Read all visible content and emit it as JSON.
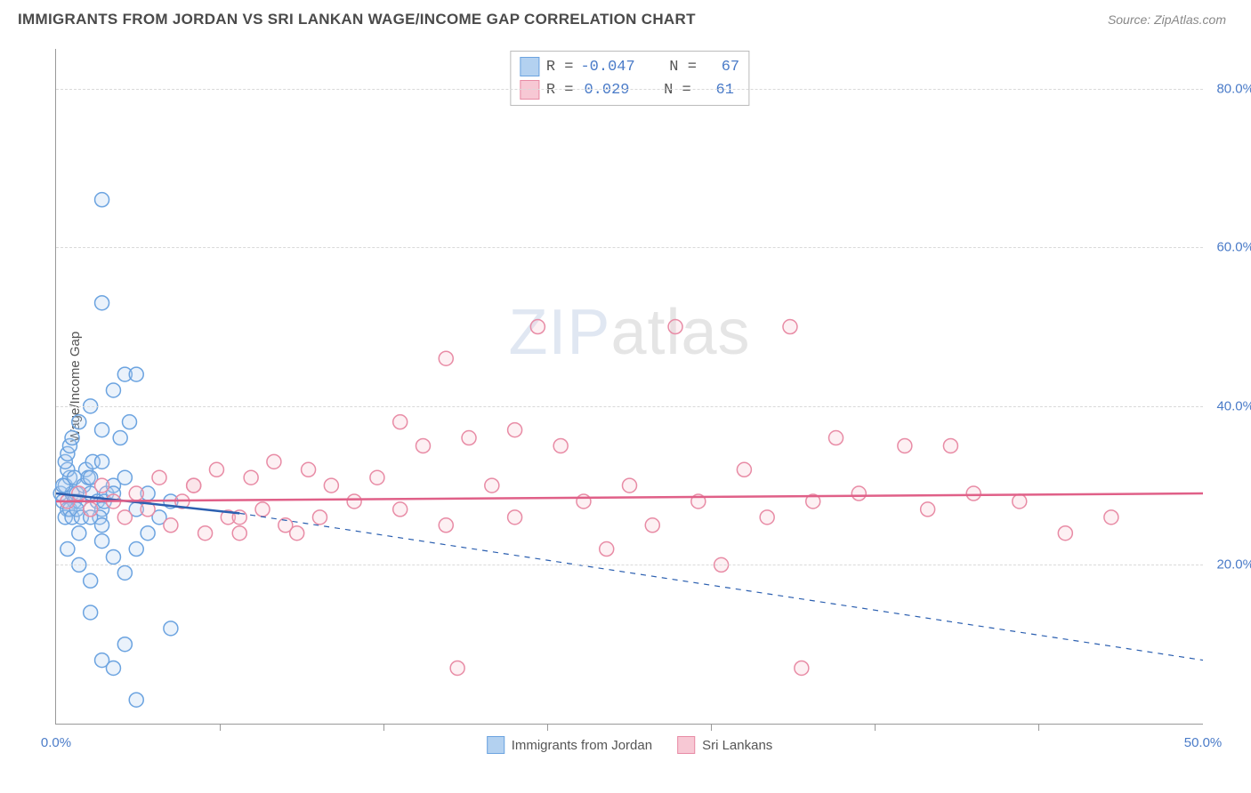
{
  "title": "IMMIGRANTS FROM JORDAN VS SRI LANKAN WAGE/INCOME GAP CORRELATION CHART",
  "source": "Source: ZipAtlas.com",
  "y_axis_label": "Wage/Income Gap",
  "watermark_bold": "ZIP",
  "watermark_thin": "atlas",
  "chart": {
    "type": "scatter",
    "background_color": "#ffffff",
    "grid_color": "#d9d9d9",
    "axis_color": "#999999",
    "xlim": [
      0,
      50
    ],
    "ylim": [
      0,
      85
    ],
    "x_ticks": [
      0,
      50
    ],
    "x_tick_labels": [
      "0.0%",
      "50.0%"
    ],
    "x_minor_ticks": [
      7.14,
      14.28,
      21.42,
      28.56,
      35.7,
      42.84
    ],
    "y_ticks": [
      20,
      40,
      60,
      80
    ],
    "y_tick_labels": [
      "20.0%",
      "40.0%",
      "60.0%",
      "80.0%"
    ],
    "marker_radius": 8,
    "marker_stroke_width": 1.5,
    "marker_fill_opacity": 0.28,
    "trend_line_width": 2.5,
    "series": [
      {
        "name": "Immigrants from Jordan",
        "color_fill": "#b3d1f0",
        "color_stroke": "#6ba3e0",
        "swatch_border": "#6ba3e0",
        "trend_color": "#2b5fb0",
        "trend_start_x": 0,
        "trend_start_y": 29,
        "trend_end_x": 8,
        "trend_end_y": 26.5,
        "extrap_start_x": 8,
        "extrap_start_y": 26.5,
        "extrap_end_x": 50,
        "extrap_end_y": 8,
        "R": "-0.047",
        "N": "67",
        "points": [
          [
            0.2,
            29
          ],
          [
            0.3,
            28
          ],
          [
            0.4,
            30
          ],
          [
            0.5,
            27
          ],
          [
            0.6,
            31
          ],
          [
            0.4,
            26
          ],
          [
            0.7,
            29
          ],
          [
            0.5,
            32
          ],
          [
            0.8,
            28
          ],
          [
            0.3,
            30
          ],
          [
            0.6,
            27
          ],
          [
            0.9,
            29
          ],
          [
            0.4,
            33
          ],
          [
            0.7,
            26
          ],
          [
            0.5,
            34
          ],
          [
            0.8,
            31
          ],
          [
            1.0,
            28
          ],
          [
            0.6,
            35
          ],
          [
            1.2,
            30
          ],
          [
            0.9,
            27
          ],
          [
            1.3,
            32
          ],
          [
            1.1,
            26
          ],
          [
            1.5,
            29
          ],
          [
            0.7,
            36
          ],
          [
            1.8,
            28
          ],
          [
            1.4,
            31
          ],
          [
            2.0,
            27
          ],
          [
            1.6,
            33
          ],
          [
            2.2,
            29
          ],
          [
            1.9,
            26
          ],
          [
            2.5,
            30
          ],
          [
            2.1,
            28
          ],
          [
            1.0,
            38
          ],
          [
            1.5,
            40
          ],
          [
            2.0,
            37
          ],
          [
            2.5,
            42
          ],
          [
            3.0,
            44
          ],
          [
            3.5,
            44
          ],
          [
            2.8,
            36
          ],
          [
            3.2,
            38
          ],
          [
            0.5,
            22
          ],
          [
            1.0,
            20
          ],
          [
            1.5,
            18
          ],
          [
            2.0,
            23
          ],
          [
            2.5,
            21
          ],
          [
            3.0,
            19
          ],
          [
            3.5,
            22
          ],
          [
            4.0,
            24
          ],
          [
            1.5,
            31
          ],
          [
            2.0,
            33
          ],
          [
            2.5,
            29
          ],
          [
            3.0,
            31
          ],
          [
            3.5,
            27
          ],
          [
            4.0,
            29
          ],
          [
            4.5,
            26
          ],
          [
            5.0,
            28
          ],
          [
            2.0,
            66
          ],
          [
            2.0,
            53
          ],
          [
            5.0,
            12
          ],
          [
            1.5,
            14
          ],
          [
            2.0,
            8
          ],
          [
            2.5,
            7
          ],
          [
            3.0,
            10
          ],
          [
            3.5,
            3
          ],
          [
            1.0,
            24
          ],
          [
            1.5,
            26
          ],
          [
            2.0,
            25
          ]
        ]
      },
      {
        "name": "Sri Lankans",
        "color_fill": "#f7c8d4",
        "color_stroke": "#e88ba5",
        "swatch_border": "#e88ba5",
        "trend_color": "#e06088",
        "trend_start_x": 0,
        "trend_start_y": 28,
        "trend_end_x": 50,
        "trend_end_y": 29,
        "extrap_start_x": 0,
        "extrap_start_y": 0,
        "extrap_end_x": 0,
        "extrap_end_y": 0,
        "R": "0.029",
        "N": "61",
        "points": [
          [
            0.5,
            28
          ],
          [
            1.0,
            29
          ],
          [
            1.5,
            27
          ],
          [
            2.0,
            30
          ],
          [
            2.5,
            28
          ],
          [
            3.0,
            26
          ],
          [
            3.5,
            29
          ],
          [
            4.0,
            27
          ],
          [
            4.5,
            31
          ],
          [
            5.0,
            25
          ],
          [
            5.5,
            28
          ],
          [
            6.0,
            30
          ],
          [
            6.5,
            24
          ],
          [
            7.0,
            32
          ],
          [
            7.5,
            26
          ],
          [
            8.0,
            24
          ],
          [
            8.5,
            31
          ],
          [
            9.0,
            27
          ],
          [
            9.5,
            33
          ],
          [
            10.0,
            25
          ],
          [
            10.5,
            24
          ],
          [
            11.0,
            32
          ],
          [
            11.5,
            26
          ],
          [
            12.0,
            30
          ],
          [
            13.0,
            28
          ],
          [
            14.0,
            31
          ],
          [
            15.0,
            27
          ],
          [
            16.0,
            35
          ],
          [
            17.0,
            25
          ],
          [
            18.0,
            36
          ],
          [
            19.0,
            30
          ],
          [
            20.0,
            26
          ],
          [
            21.0,
            50
          ],
          [
            22.0,
            35
          ],
          [
            23.0,
            28
          ],
          [
            24.0,
            22
          ],
          [
            25.0,
            30
          ],
          [
            26.0,
            25
          ],
          [
            27.0,
            50
          ],
          [
            28.0,
            28
          ],
          [
            29.0,
            20
          ],
          [
            30.0,
            32
          ],
          [
            31.0,
            26
          ],
          [
            32.0,
            50
          ],
          [
            33.0,
            28
          ],
          [
            34.0,
            36
          ],
          [
            35.0,
            29
          ],
          [
            37.0,
            35
          ],
          [
            38.0,
            27
          ],
          [
            39.0,
            35
          ],
          [
            40.0,
            29
          ],
          [
            42.0,
            28
          ],
          [
            44.0,
            24
          ],
          [
            46.0,
            26
          ],
          [
            17.0,
            46
          ],
          [
            17.5,
            7
          ],
          [
            32.5,
            7
          ],
          [
            15.0,
            38
          ],
          [
            20.0,
            37
          ],
          [
            8.0,
            26
          ],
          [
            6.0,
            30
          ]
        ]
      }
    ]
  },
  "stats_labels": {
    "R": "R",
    "eq": "=",
    "N": "N"
  },
  "legend_labels": [
    "Immigrants from Jordan",
    "Sri Lankans"
  ]
}
